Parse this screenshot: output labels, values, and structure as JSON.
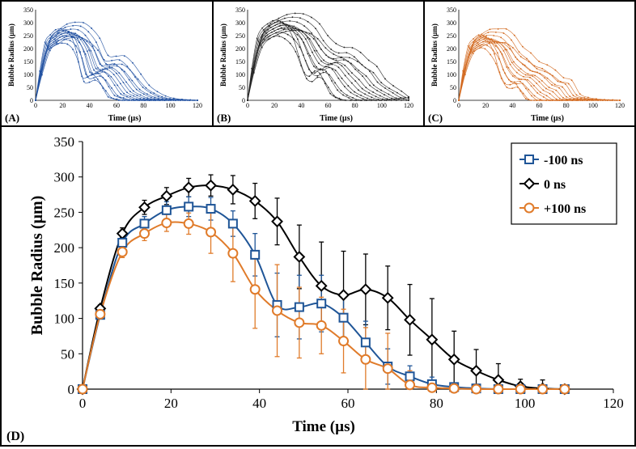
{
  "panels": {
    "a": {
      "letter": "(A)",
      "color": "#1f4fa0"
    },
    "b": {
      "letter": "(B)",
      "color": "#222222"
    },
    "c": {
      "letter": "(C)",
      "color": "#d2691e"
    },
    "d": {
      "letter": "(D)"
    }
  },
  "small_axes": {
    "xlabel": "Time (µs)",
    "ylabel": "Bubble Radius (µm)",
    "xlim": [
      0,
      120
    ],
    "ylim": [
      0,
      350
    ],
    "xticks": [
      0,
      20,
      40,
      60,
      80,
      100,
      120
    ],
    "yticks": [
      0,
      50,
      100,
      150,
      200,
      250,
      300,
      350
    ]
  },
  "chart_data": {
    "type": "line",
    "title": "",
    "xlabel": "Time (µs)",
    "ylabel": "Bubble Radius (µm)",
    "xlim": [
      0,
      120
    ],
    "ylim": [
      0,
      350
    ],
    "xticks": [
      0,
      20,
      40,
      60,
      80,
      100,
      120
    ],
    "yticks": [
      0,
      50,
      100,
      150,
      200,
      250,
      300,
      350
    ],
    "legend_position": "top-right",
    "x": [
      0,
      4,
      9,
      14,
      19,
      24,
      29,
      34,
      39,
      44,
      49,
      54,
      59,
      64,
      69,
      74,
      79,
      84,
      89,
      94,
      99,
      104,
      109
    ],
    "series": [
      {
        "name": "-100 ns",
        "color": "#1f5597",
        "marker": "square",
        "values": [
          0,
          105,
          207,
          234,
          253,
          258,
          255,
          234,
          190,
          119,
          116,
          121,
          101,
          66,
          32,
          18,
          7,
          3,
          1,
          0,
          0,
          0,
          0
        ],
        "errors": [
          0,
          5,
          8,
          10,
          12,
          14,
          16,
          18,
          30,
          45,
          45,
          40,
          35,
          30,
          25,
          15,
          10,
          5,
          3,
          2,
          0,
          0,
          0
        ]
      },
      {
        "name": "0 ns",
        "color": "#000000",
        "marker": "diamond",
        "values": [
          0,
          114,
          220,
          257,
          273,
          285,
          288,
          282,
          266,
          237,
          187,
          146,
          133,
          141,
          129,
          98,
          70,
          42,
          26,
          13,
          4,
          1,
          0
        ],
        "errors": [
          0,
          5,
          8,
          10,
          12,
          13,
          15,
          20,
          25,
          33,
          45,
          62,
          62,
          50,
          45,
          50,
          58,
          40,
          30,
          23,
          10,
          12,
          0
        ]
      },
      {
        "name": "+100 ns",
        "color": "#e07b2a",
        "marker": "circle",
        "values": [
          0,
          106,
          194,
          220,
          235,
          234,
          222,
          192,
          141,
          111,
          94,
          90,
          68,
          42,
          29,
          6,
          2,
          1,
          0,
          0,
          0,
          0,
          0
        ],
        "errors": [
          0,
          5,
          8,
          10,
          12,
          15,
          30,
          40,
          55,
          65,
          50,
          40,
          45,
          45,
          50,
          20,
          10,
          5,
          3,
          2,
          0,
          0,
          0
        ]
      }
    ]
  }
}
